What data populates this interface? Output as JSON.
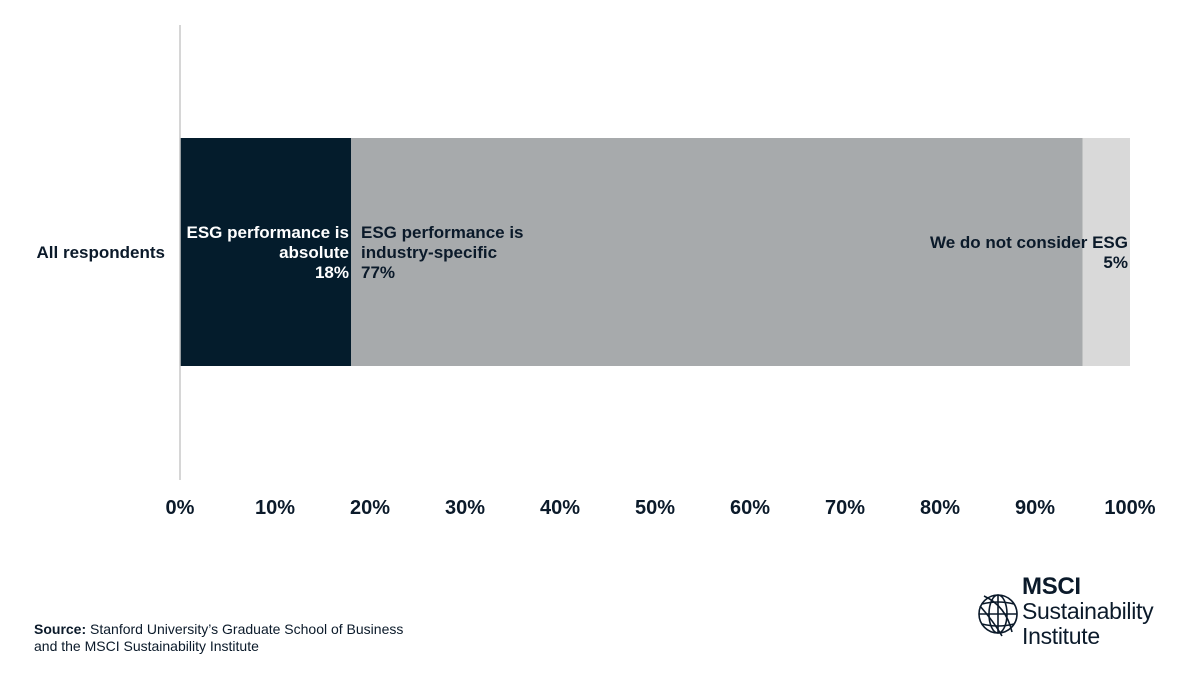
{
  "chart_data": {
    "type": "bar",
    "orientation": "horizontal",
    "stacked": true,
    "categories": [
      "All respondents"
    ],
    "series": [
      {
        "name": "ESG performance is absolute",
        "label_lines": [
          "ESG performance is",
          "absolute",
          "18%"
        ],
        "values": [
          18
        ],
        "color": "#041c2c",
        "label_color": "#ffffff",
        "label_align": "end"
      },
      {
        "name": "ESG performance is industry-specific",
        "label_lines": [
          "ESG performance is",
          "industry-specific",
          "77%"
        ],
        "values": [
          77
        ],
        "color": "#a7aaac",
        "label_color": "#0b1a2a",
        "label_align": "start"
      },
      {
        "name": "We do not consider ESG",
        "label_lines": [
          "We do not consider ESG",
          "5%"
        ],
        "values": [
          5
        ],
        "color": "#d9d9d9",
        "label_color": "#0b1a2a",
        "label_align": "end"
      }
    ],
    "xlim": [
      0,
      100
    ],
    "xticks": [
      "0%",
      "10%",
      "20%",
      "30%",
      "40%",
      "50%",
      "60%",
      "70%",
      "80%",
      "90%",
      "100%"
    ],
    "grid": false,
    "legend": "none"
  },
  "source": {
    "label": "Source:",
    "text_line1": " Stanford University’s Graduate School of Business",
    "text_line2": "and the MSCI Sustainability Institute"
  },
  "logo": {
    "brand": "MSCI",
    "line1": "Sustainability",
    "line2": "Institute",
    "icon": "globe-icon"
  }
}
